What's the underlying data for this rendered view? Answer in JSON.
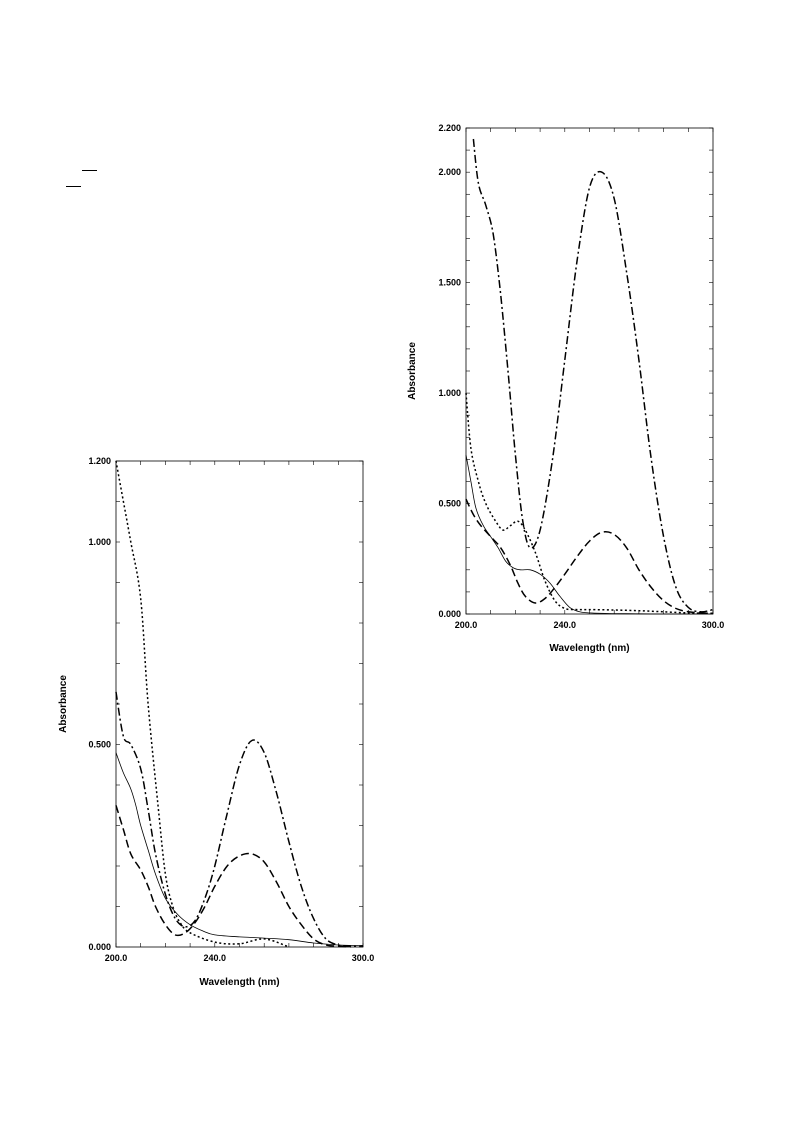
{
  "chart_data": [
    {
      "type": "line",
      "xlabel": "Wavelength (nm)",
      "ylabel": "Absorbance",
      "xlim": [
        200,
        300
      ],
      "ylim": [
        0,
        1.2
      ],
      "xtick_labels": [
        "200.0",
        "240.0",
        "300.0"
      ],
      "xtick_values": [
        200,
        240,
        300
      ],
      "ytick_labels": [
        "0.000",
        "0.500",
        "1.000",
        "1.200"
      ],
      "ytick_values": [
        0,
        0.5,
        1.0,
        1.2
      ],
      "grid": false,
      "series": [
        {
          "style": "dotted",
          "x": [
            200,
            203,
            206,
            210,
            213,
            217,
            220,
            223,
            226,
            230,
            240,
            250,
            260,
            270
          ],
          "y": [
            1.2,
            1.1,
            1.0,
            0.86,
            0.6,
            0.35,
            0.18,
            0.1,
            0.06,
            0.035,
            0.012,
            0.008,
            0.02,
            0.0
          ]
        },
        {
          "style": "dash-dot",
          "x": [
            200,
            203,
            206,
            210,
            213,
            216,
            220,
            224,
            228,
            232,
            236,
            240,
            245,
            250,
            255,
            260,
            265,
            270,
            275,
            280,
            285,
            290,
            295,
            300
          ],
          "y": [
            0.63,
            0.52,
            0.5,
            0.44,
            0.34,
            0.23,
            0.13,
            0.07,
            0.05,
            0.065,
            0.12,
            0.2,
            0.33,
            0.45,
            0.51,
            0.48,
            0.38,
            0.26,
            0.15,
            0.07,
            0.02,
            0.005,
            0.002,
            0.003
          ]
        },
        {
          "style": "dashed",
          "x": [
            200,
            203,
            206,
            210,
            213,
            216,
            220,
            224,
            228,
            232,
            236,
            240,
            245,
            250,
            255,
            260,
            265,
            270,
            275,
            280,
            285,
            290,
            295
          ],
          "y": [
            0.35,
            0.29,
            0.23,
            0.19,
            0.15,
            0.1,
            0.055,
            0.03,
            0.035,
            0.06,
            0.1,
            0.15,
            0.2,
            0.225,
            0.23,
            0.21,
            0.16,
            0.1,
            0.055,
            0.02,
            0.005,
            0.002,
            0.0
          ]
        },
        {
          "style": "solid",
          "x": [
            200,
            203,
            206,
            208,
            210,
            213,
            216,
            220,
            225,
            230,
            235,
            240,
            250,
            260,
            270,
            280,
            290,
            300
          ],
          "y": [
            0.48,
            0.43,
            0.39,
            0.35,
            0.3,
            0.24,
            0.18,
            0.12,
            0.08,
            0.055,
            0.04,
            0.03,
            0.025,
            0.022,
            0.018,
            0.01,
            0.005,
            0.003
          ]
        }
      ]
    },
    {
      "type": "line",
      "xlabel": "Wavelength (nm)",
      "ylabel": "Absorbance",
      "xlim": [
        200,
        300
      ],
      "ylim": [
        0,
        2.2
      ],
      "xtick_labels": [
        "200.0",
        "240.0",
        "300.0"
      ],
      "xtick_values": [
        200,
        240,
        300
      ],
      "ytick_labels": [
        "0.000",
        "0.500",
        "1.000",
        "1.500",
        "2.000",
        "2.200"
      ],
      "ytick_values": [
        0,
        0.5,
        1.0,
        1.5,
        2.0,
        2.2
      ],
      "grid": false,
      "series": [
        {
          "style": "dash-dot",
          "x": [
            203,
            205,
            208,
            211,
            214,
            217,
            220,
            223,
            226,
            230,
            235,
            240,
            245,
            250,
            255,
            260,
            265,
            270,
            275,
            280,
            285,
            290,
            295,
            300
          ],
          "y": [
            2.15,
            1.95,
            1.85,
            1.72,
            1.45,
            1.1,
            0.72,
            0.42,
            0.3,
            0.38,
            0.7,
            1.15,
            1.6,
            1.93,
            2.0,
            1.88,
            1.55,
            1.15,
            0.7,
            0.35,
            0.12,
            0.03,
            0.01,
            0.02
          ]
        },
        {
          "style": "dotted",
          "x": [
            200,
            202,
            205,
            208,
            212,
            215,
            218,
            221,
            224,
            228,
            232,
            236,
            240,
            245,
            250,
            260,
            270,
            280,
            290,
            300
          ],
          "y": [
            1.0,
            0.75,
            0.6,
            0.5,
            0.42,
            0.38,
            0.4,
            0.42,
            0.38,
            0.28,
            0.15,
            0.06,
            0.025,
            0.02,
            0.02,
            0.018,
            0.015,
            0.01,
            0.005,
            0.003
          ]
        },
        {
          "style": "dashed",
          "x": [
            200,
            203,
            206,
            210,
            214,
            218,
            221,
            224,
            228,
            232,
            236,
            240,
            245,
            250,
            255,
            260,
            265,
            270,
            275,
            280,
            285,
            290,
            295,
            300
          ],
          "y": [
            0.52,
            0.45,
            0.4,
            0.35,
            0.3,
            0.22,
            0.14,
            0.08,
            0.05,
            0.07,
            0.12,
            0.18,
            0.26,
            0.33,
            0.37,
            0.36,
            0.3,
            0.2,
            0.12,
            0.06,
            0.025,
            0.01,
            0.005,
            0.003
          ]
        },
        {
          "style": "solid",
          "x": [
            200,
            202,
            204,
            207,
            210,
            213,
            216,
            219,
            222,
            226,
            230,
            234,
            238,
            242,
            246,
            250,
            260,
            270,
            280,
            290,
            300
          ],
          "y": [
            0.72,
            0.6,
            0.48,
            0.4,
            0.35,
            0.3,
            0.24,
            0.21,
            0.2,
            0.2,
            0.18,
            0.14,
            0.08,
            0.03,
            0.01,
            0.005,
            0.002,
            0.001,
            0.0,
            0.0,
            0.0
          ]
        }
      ]
    }
  ]
}
